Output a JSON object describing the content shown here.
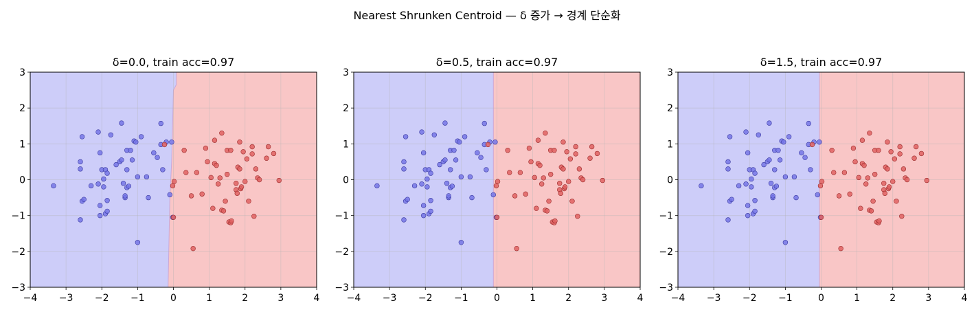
{
  "suptitle": "Nearest Shrunken Centroid — δ 증가 → 경계 단순화",
  "colors": {
    "region_blue": "#cdcdf9",
    "region_red": "#f9c6c6",
    "point_blue": "#7575e6",
    "point_blue_edge": "#3a3aa0",
    "point_red": "#e06262",
    "point_red_edge": "#9a2a2a",
    "grid": "#b4b4b4"
  },
  "chart_data": [
    {
      "type": "scatter",
      "title": "δ=0.0, train acc=0.97",
      "xlim": [
        -4,
        4
      ],
      "ylim": [
        -3,
        3
      ],
      "xticks": [
        -4,
        -3,
        -2,
        -1,
        0,
        1,
        2,
        3,
        4
      ],
      "yticks": [
        -3,
        -2,
        -1,
        0,
        1,
        2,
        3
      ],
      "xtick_labels": [
        "−4",
        "−3",
        "−2",
        "−1",
        "0",
        "1",
        "2",
        "3",
        "4"
      ],
      "ytick_labels": [
        "−3",
        "−2",
        "−1",
        "0",
        "1",
        "2",
        "3"
      ],
      "grid": true,
      "boundary": [
        [
          0.08,
          3
        ],
        [
          0.08,
          2.65
        ],
        [
          0.0,
          2.5
        ],
        [
          -0.05,
          0.5
        ],
        [
          -0.1,
          -0.5
        ],
        [
          -0.12,
          -1.5
        ],
        [
          -0.15,
          -3
        ]
      ]
    },
    {
      "type": "scatter",
      "title": "δ=0.5, train acc=0.97",
      "xlim": [
        -4,
        4
      ],
      "ylim": [
        -3,
        3
      ],
      "xticks": [
        -4,
        -3,
        -2,
        -1,
        0,
        1,
        2,
        3,
        4
      ],
      "yticks": [
        -3,
        -2,
        -1,
        0,
        1,
        2,
        3
      ],
      "xtick_labels": [
        "−4",
        "−3",
        "−2",
        "−1",
        "0",
        "1",
        "2",
        "3",
        "4"
      ],
      "ytick_labels": [
        "−3",
        "−2",
        "−1",
        "0",
        "1",
        "2",
        "3"
      ],
      "grid": true,
      "boundary": [
        [
          -0.1,
          3
        ],
        [
          -0.1,
          -3
        ]
      ]
    },
    {
      "type": "scatter",
      "title": "δ=1.5, train acc=0.97",
      "xlim": [
        -4,
        4
      ],
      "ylim": [
        -3,
        3
      ],
      "xticks": [
        -4,
        -3,
        -2,
        -1,
        0,
        1,
        2,
        3,
        4
      ],
      "yticks": [
        -3,
        -2,
        -1,
        0,
        1,
        2,
        3
      ],
      "xtick_labels": [
        "−4",
        "−3",
        "−2",
        "−1",
        "0",
        "1",
        "2",
        "3",
        "4"
      ],
      "ytick_labels": [
        "−3",
        "−2",
        "−1",
        "0",
        "1",
        "2",
        "3"
      ],
      "grid": true,
      "boundary": [
        [
          -0.05,
          3
        ],
        [
          -0.05,
          -3
        ]
      ]
    }
  ],
  "points": {
    "blue": [
      [
        -3.35,
        -0.17
      ],
      [
        -2.55,
        1.2
      ],
      [
        -2.6,
        0.3
      ],
      [
        -2.6,
        0.5
      ],
      [
        -2.55,
        -0.6
      ],
      [
        -2.5,
        -0.55
      ],
      [
        -2.6,
        -1.12
      ],
      [
        -2.3,
        -0.17
      ],
      [
        -2.1,
        1.33
      ],
      [
        -2.05,
        0.75
      ],
      [
        -2.0,
        0.28
      ],
      [
        -1.9,
        0.28
      ],
      [
        -1.95,
        0.02
      ],
      [
        -1.95,
        -0.2
      ],
      [
        -2.1,
        -0.12
      ],
      [
        -1.85,
        0.18
      ],
      [
        -2.05,
        -0.72
      ],
      [
        -2.05,
        -1.0
      ],
      [
        -1.9,
        -0.95
      ],
      [
        -1.85,
        -0.58
      ],
      [
        -1.85,
        -0.88
      ],
      [
        -1.75,
        1.25
      ],
      [
        -1.6,
        0.42
      ],
      [
        -1.5,
        0.5
      ],
      [
        -1.45,
        0.55
      ],
      [
        -1.45,
        1.58
      ],
      [
        -1.3,
        0.82
      ],
      [
        -1.3,
        0.28
      ],
      [
        -1.4,
        -0.1
      ],
      [
        -1.35,
        -0.5
      ],
      [
        -1.35,
        -0.45
      ],
      [
        -1.3,
        -0.22
      ],
      [
        -1.25,
        -0.18
      ],
      [
        -1.2,
        0.82
      ],
      [
        -1.15,
        0.55
      ],
      [
        -1.1,
        1.08
      ],
      [
        -1.05,
        1.05
      ],
      [
        -1.0,
        0.08
      ],
      [
        -1.0,
        -1.75
      ],
      [
        -0.9,
        1.2
      ],
      [
        -0.75,
        0.08
      ],
      [
        -0.7,
        -0.5
      ],
      [
        -0.55,
        0.75
      ],
      [
        -0.45,
        0.62
      ],
      [
        -0.35,
        1.57
      ],
      [
        -0.3,
        0.28
      ],
      [
        -0.35,
        0.98
      ],
      [
        -0.2,
        1.05
      ],
      [
        -0.05,
        1.05
      ],
      [
        -0.1,
        -0.42
      ],
      [
        -0.02,
        -1.05
      ]
    ],
    "red": [
      [
        0.0,
        -1.05
      ],
      [
        -0.02,
        -0.17
      ],
      [
        0.02,
        -0.05
      ],
      [
        0.3,
        0.82
      ],
      [
        0.35,
        0.2
      ],
      [
        0.5,
        -0.45
      ],
      [
        0.55,
        -1.92
      ],
      [
        0.65,
        0.2
      ],
      [
        0.8,
        -0.4
      ],
      [
        0.9,
        0.88
      ],
      [
        0.95,
        0.5
      ],
      [
        1.05,
        0.06
      ],
      [
        1.1,
        -0.8
      ],
      [
        1.15,
        0.45
      ],
      [
        1.15,
        1.1
      ],
      [
        1.2,
        0.4
      ],
      [
        1.25,
        -0.12
      ],
      [
        1.3,
        0.05
      ],
      [
        1.35,
        1.3
      ],
      [
        1.35,
        -0.85
      ],
      [
        1.4,
        -0.87
      ],
      [
        1.45,
        -0.6
      ],
      [
        1.5,
        0.15
      ],
      [
        1.5,
        0.82
      ],
      [
        1.55,
        -1.18
      ],
      [
        1.6,
        -1.2
      ],
      [
        1.62,
        -1.15
      ],
      [
        1.75,
        -0.1
      ],
      [
        1.75,
        -0.28
      ],
      [
        1.78,
        -0.38
      ],
      [
        1.8,
        0.35
      ],
      [
        1.85,
        0.3
      ],
      [
        1.85,
        1.05
      ],
      [
        1.88,
        -0.25
      ],
      [
        1.9,
        -0.2
      ],
      [
        1.95,
        0.78
      ],
      [
        2.0,
        -0.05
      ],
      [
        2.05,
        0.58
      ],
      [
        2.1,
        -0.6
      ],
      [
        2.2,
        0.72
      ],
      [
        2.2,
        0.92
      ],
      [
        2.25,
        -1.02
      ],
      [
        2.3,
        0.3
      ],
      [
        2.35,
        0.05
      ],
      [
        2.4,
        0.0
      ],
      [
        2.6,
        0.6
      ],
      [
        2.65,
        0.92
      ],
      [
        2.8,
        0.73
      ],
      [
        2.95,
        -0.02
      ],
      [
        -0.25,
        0.98
      ],
      [
        1.6,
        0.82
      ]
    ]
  }
}
